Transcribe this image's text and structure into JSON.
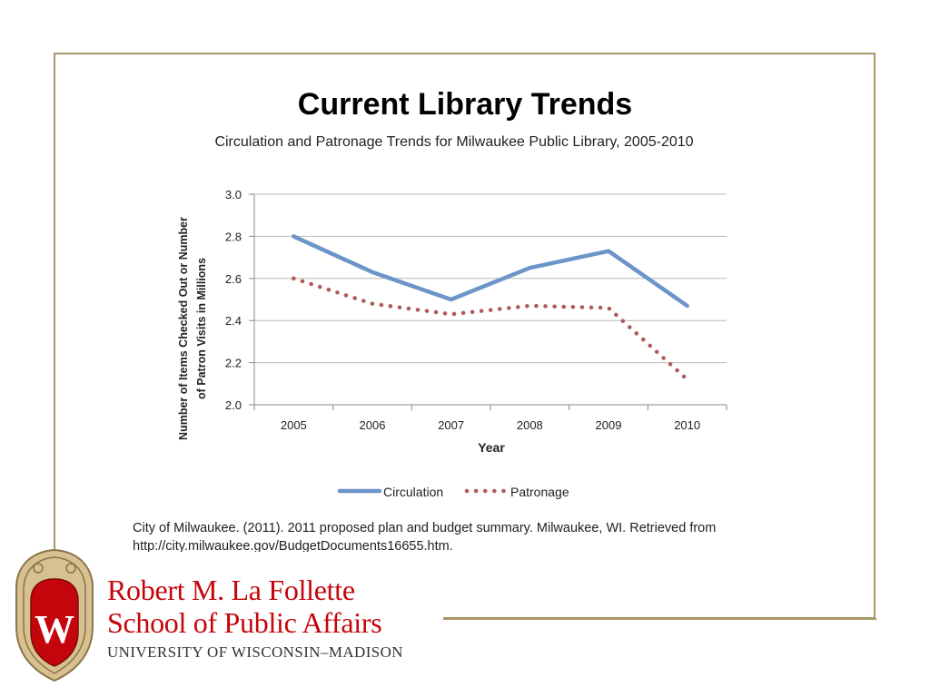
{
  "slide": {
    "title": "Current Library Trends",
    "citation": "City of Milwaukee. (2011). 2011 proposed plan and budget summary. Milwaukee, WI. Retrieved from http://city.milwaukee.gov/BudgetDocuments16655.htm."
  },
  "colors": {
    "frame": "#a8976a",
    "circulation": "#6b95c8",
    "patronage": "#b05a5a",
    "grid": "#b8b8b8",
    "logo_red": "#c5050c"
  },
  "logo": {
    "name_line1": "Robert M. La Follette",
    "name_line2": "School of Public Affairs",
    "university": "UNIVERSITY OF WISCONSIN–MADISON",
    "crest_letter": "W",
    "crest_icon": "university-crest-icon"
  },
  "chart_data": {
    "type": "line",
    "title": "Circulation and Patronage Trends for Milwaukee Public Library, 2005-2010",
    "xlabel": "Year",
    "ylabel_line1": "Number of Items Checked Out or Number",
    "ylabel_line2": "of Patron Visits in Millions",
    "categories": [
      "2005",
      "2006",
      "2007",
      "2008",
      "2009",
      "2010"
    ],
    "ylim": [
      2.0,
      3.0
    ],
    "yticks": [
      "2.0",
      "2.2",
      "2.4",
      "2.6",
      "2.8",
      "3.0"
    ],
    "grid": true,
    "legend_position": "bottom",
    "series": [
      {
        "name": "Circulation",
        "style": "solid",
        "values": [
          2.8,
          2.63,
          2.5,
          2.65,
          2.73,
          2.47
        ]
      },
      {
        "name": "Patronage",
        "style": "dotted",
        "values": [
          2.6,
          2.48,
          2.43,
          2.47,
          2.46,
          2.12
        ]
      }
    ]
  }
}
